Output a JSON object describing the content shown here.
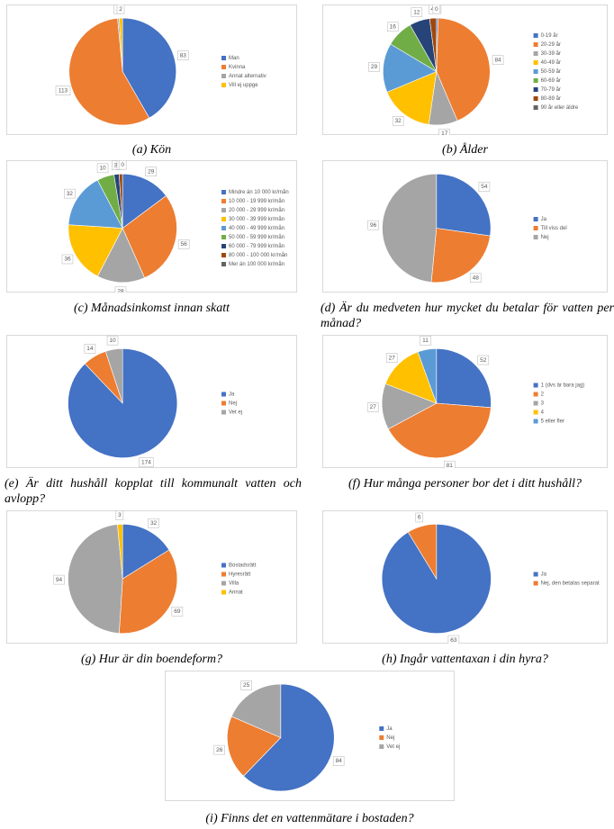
{
  "chart_data": [
    {
      "type": "pie",
      "title": "(a) Kön",
      "categories": [
        "Man",
        "Kvinna",
        "Annat alternativ",
        "Vill ej uppge"
      ],
      "values": [
        83,
        113,
        1,
        2
      ],
      "colors": [
        "#4472c4",
        "#ed7d31",
        "#a5a5a5",
        "#ffc000"
      ]
    },
    {
      "type": "pie",
      "title": "(b) Ålder",
      "categories": [
        "0-19 år",
        "20-29 år",
        "30-39 år",
        "40-49 år",
        "50-59 år",
        "60-69 år",
        "70-79 år",
        "80-89 år",
        "90 år eller äldre"
      ],
      "values": [
        1,
        84,
        17,
        32,
        29,
        16,
        12,
        4,
        0
      ],
      "colors": [
        "#4472c4",
        "#ed7d31",
        "#a5a5a5",
        "#ffc000",
        "#5b9bd5",
        "#70ad47",
        "#264478",
        "#9e480e",
        "#636363"
      ]
    },
    {
      "type": "pie",
      "title": "(c) Månadsinkomst innan skatt",
      "categories": [
        "Mindre än 10 000 kr/mån",
        "10 000 - 19 999 kr/mån",
        "20 000 - 29 999 kr/mån",
        "30 000 - 39 999 kr/mån",
        "40 000 - 49 999 kr/mån",
        "50 000 - 59 999 kr/mån",
        "60 000 - 79 999 kr/mån",
        "80 000 - 100 000 kr/mån",
        "Mer än 100 000 kr/mån"
      ],
      "values": [
        29,
        56,
        28,
        36,
        32,
        10,
        3,
        2,
        0
      ],
      "colors": [
        "#4472c4",
        "#ed7d31",
        "#a5a5a5",
        "#ffc000",
        "#5b9bd5",
        "#70ad47",
        "#264478",
        "#9e480e",
        "#636363"
      ]
    },
    {
      "type": "pie",
      "title": "(d) Är du medveten hur mycket du betalar för vatten per månad?",
      "categories": [
        "Ja",
        "Till viss del",
        "Nej"
      ],
      "values": [
        54,
        48,
        96
      ],
      "colors": [
        "#4472c4",
        "#ed7d31",
        "#a5a5a5"
      ]
    },
    {
      "type": "pie",
      "title": "(e) Är ditt hushåll kopplat till kommunalt vatten och avlopp?",
      "categories": [
        "Ja",
        "Nej",
        "Vet ej"
      ],
      "values": [
        174,
        14,
        10
      ],
      "colors": [
        "#4472c4",
        "#ed7d31",
        "#a5a5a5"
      ]
    },
    {
      "type": "pie",
      "title": "(f) Hur många personer bor det i ditt hushåll?",
      "categories": [
        "1 (dvs är bara jag)",
        "2",
        "3",
        "4",
        "5 eller fler"
      ],
      "values": [
        52,
        81,
        27,
        27,
        11
      ],
      "colors": [
        "#4472c4",
        "#ed7d31",
        "#a5a5a5",
        "#ffc000",
        "#5b9bd5"
      ]
    },
    {
      "type": "pie",
      "title": "(g) Hur är din boendeform?",
      "categories": [
        "Bostadsrätt",
        "Hyresrätt",
        "Villa",
        "Annat"
      ],
      "values": [
        32,
        69,
        94,
        3
      ],
      "colors": [
        "#4472c4",
        "#ed7d31",
        "#a5a5a5",
        "#ffc000"
      ]
    },
    {
      "type": "pie",
      "title": "(h) Ingår vattentaxan i din hyra?",
      "categories": [
        "Ja",
        "Nej, den betalas separat"
      ],
      "values": [
        63,
        6
      ],
      "colors": [
        "#4472c4",
        "#ed7d31"
      ]
    },
    {
      "type": "pie",
      "title": "(i) Finns det en vattenmätare i bostaden?",
      "categories": [
        "Ja",
        "Nej",
        "Vet ej"
      ],
      "values": [
        84,
        26,
        25
      ],
      "colors": [
        "#4472c4",
        "#ed7d31",
        "#a5a5a5"
      ]
    }
  ]
}
